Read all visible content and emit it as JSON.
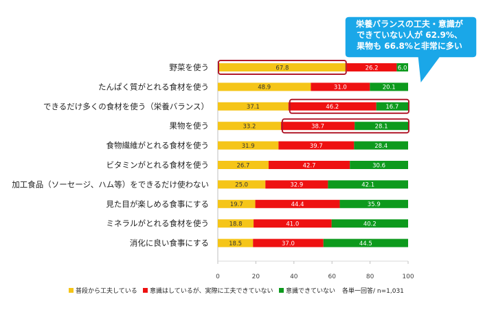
{
  "chart_data": {
    "type": "bar",
    "orientation": "horizontal",
    "stacked": true,
    "categories": [
      "野菜を使う",
      "たんぱく質がとれる食材を使う",
      "できるだけ多くの食材を使う（栄養バランス）",
      "果物を使う",
      "食物繊維がとれる食材を使う",
      "ビタミンがとれる食材を使う",
      "加工食品（ソーセージ、ハム等）をできるだけ使わない",
      "見た目が楽しめる食事にする",
      "ミネラルがとれる食材を使う",
      "消化に良い食事にする"
    ],
    "series": [
      {
        "name": "普段から工夫している",
        "color": "#f5c518",
        "values": [
          67.8,
          48.9,
          37.1,
          33.2,
          31.9,
          26.7,
          25.0,
          19.7,
          18.8,
          18.5
        ]
      },
      {
        "name": "意識はしているが、実際に工夫できていない",
        "color": "#ee1111",
        "values": [
          26.2,
          31.0,
          46.2,
          38.7,
          39.7,
          42.7,
          32.9,
          44.4,
          41.0,
          37.0
        ]
      },
      {
        "name": "意識できていない",
        "color": "#0d9a1d",
        "values": [
          6.0,
          20.1,
          16.7,
          28.1,
          28.4,
          30.6,
          42.1,
          35.9,
          40.2,
          44.5
        ]
      }
    ],
    "xlim": [
      0,
      100
    ],
    "xticks": [
      "0",
      "20",
      "40",
      "60",
      "80",
      "100"
    ],
    "note": "各単一回答/ n=1,031",
    "legend_position": "bottom",
    "grid": false
  },
  "callout": {
    "lines": [
      "栄養バランスの工夫・意識が",
      "できていない人が 62.9%、",
      "果物も 66.8%と非常に多い"
    ],
    "color": "#1aa7e8"
  },
  "highlights": {
    "border_color": "#b0182a"
  }
}
